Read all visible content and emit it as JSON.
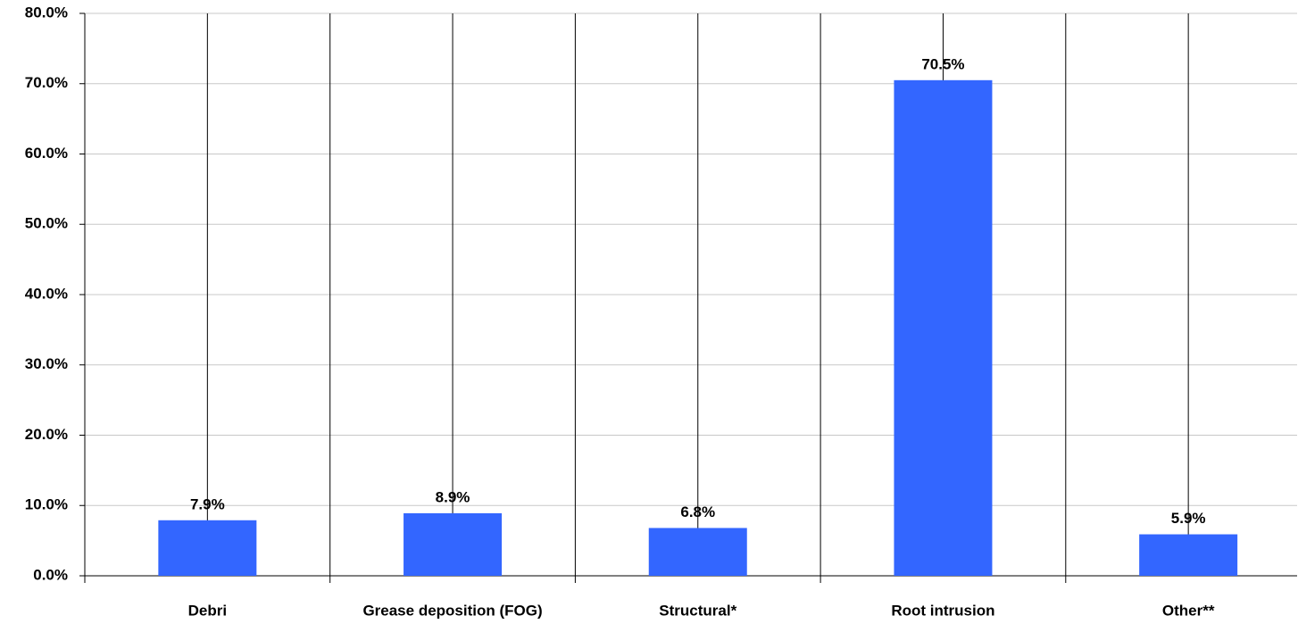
{
  "chart_data": {
    "type": "bar",
    "categories": [
      "Debri",
      "Grease deposition (FOG)",
      "Structural*",
      "Root intrusion",
      "Other**"
    ],
    "values": [
      7.9,
      8.9,
      6.8,
      70.5,
      5.9
    ],
    "value_labels": [
      "7.9%",
      "8.9%",
      "6.8%",
      "70.5%",
      "5.9%"
    ],
    "color": "#3366ff",
    "ylim": [
      0,
      80
    ],
    "yticks": [
      {
        "value": 0,
        "label": "0.0%"
      },
      {
        "value": 10,
        "label": "10.0%"
      },
      {
        "value": 20,
        "label": "20.0%"
      },
      {
        "value": 30,
        "label": "30.0%"
      },
      {
        "value": 40,
        "label": "40.0%"
      },
      {
        "value": 50,
        "label": "50.0%"
      },
      {
        "value": 60,
        "label": "60.0%"
      },
      {
        "value": 70,
        "label": "70.0%"
      },
      {
        "value": 80,
        "label": "80.0%"
      }
    ],
    "grid": true
  }
}
